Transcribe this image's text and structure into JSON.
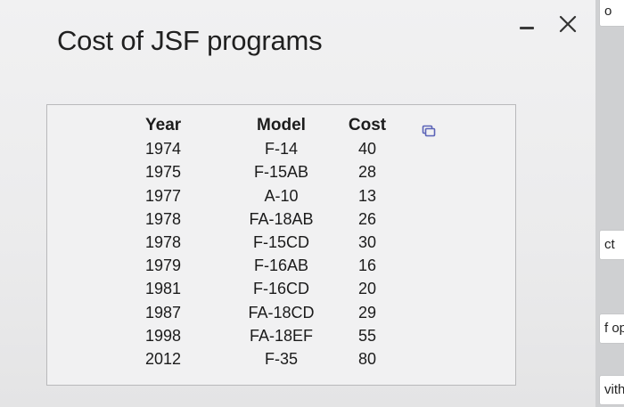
{
  "dialog": {
    "title": "Cost of JSF programs"
  },
  "table": {
    "headers": {
      "year": "Year",
      "model": "Model",
      "cost": "Cost"
    },
    "rows": [
      {
        "year": "1974",
        "model": "F-14",
        "cost": "40"
      },
      {
        "year": "1975",
        "model": "F-15AB",
        "cost": "28"
      },
      {
        "year": "1977",
        "model": "A-10",
        "cost": "13"
      },
      {
        "year": "1978",
        "model": "FA-18AB",
        "cost": "26"
      },
      {
        "year": "1978",
        "model": "F-15CD",
        "cost": "30"
      },
      {
        "year": "1979",
        "model": "F-16AB",
        "cost": "16"
      },
      {
        "year": "1981",
        "model": "F-16CD",
        "cost": "20"
      },
      {
        "year": "1987",
        "model": "FA-18CD",
        "cost": "29"
      },
      {
        "year": "1998",
        "model": "FA-18EF",
        "cost": "55"
      },
      {
        "year": "2012",
        "model": "F-35",
        "cost": "80"
      }
    ]
  },
  "background_fragments": [
    "o",
    "ct",
    "f op",
    "vith"
  ],
  "icons": {
    "minimize": "minimize-icon",
    "close": "close-icon",
    "copy": "copy-icon"
  },
  "colors": {
    "copy_icon": "#5b63b7"
  }
}
